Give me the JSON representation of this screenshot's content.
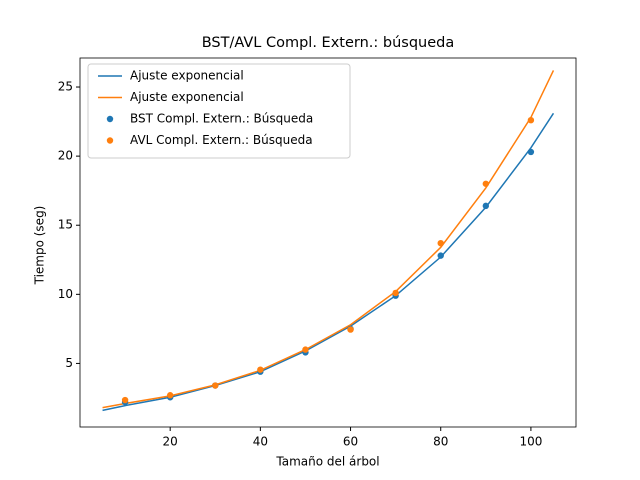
{
  "chart_data": {
    "type": "line",
    "title": "BST/AVL Compl. Extern.: búsqueda",
    "x_label": "Tamaño del árbol",
    "y_label": "Tiempo (seg)",
    "xlim": [
      0,
      110
    ],
    "ylim": [
      0.4,
      27.1
    ],
    "xticks": [
      20,
      40,
      60,
      80,
      100
    ],
    "yticks": [
      5,
      10,
      15,
      20,
      25
    ],
    "legend": "upper left",
    "grid": false,
    "series": [
      {
        "name": "Ajuste exponencial",
        "type": "line",
        "color": "#1f77b4",
        "x": [
          5,
          10,
          20,
          30,
          40,
          50,
          60,
          70,
          80,
          90,
          100,
          105
        ],
        "values": [
          1.6,
          1.95,
          2.55,
          3.4,
          4.4,
          5.9,
          7.7,
          9.9,
          12.7,
          16.3,
          20.6,
          23.1
        ]
      },
      {
        "name": "Ajuste exponencial",
        "type": "line",
        "color": "#ff7f0e",
        "x": [
          5,
          10,
          20,
          30,
          40,
          50,
          60,
          70,
          80,
          90,
          100,
          105
        ],
        "values": [
          1.8,
          2.1,
          2.65,
          3.45,
          4.5,
          6.0,
          7.8,
          10.2,
          13.4,
          17.7,
          22.8,
          26.2
        ]
      },
      {
        "name": "BST Compl. Extern.: Búsqueda",
        "type": "scatter",
        "color": "#1f77b4",
        "x": [
          10,
          20,
          30,
          40,
          50,
          60,
          70,
          80,
          90,
          100
        ],
        "values": [
          2.2,
          2.55,
          3.4,
          4.4,
          5.8,
          7.5,
          9.9,
          12.8,
          16.4,
          20.3
        ]
      },
      {
        "name": "AVL Compl. Extern.: Búsqueda",
        "type": "scatter",
        "color": "#ff7f0e",
        "x": [
          10,
          20,
          30,
          40,
          50,
          60,
          70,
          80,
          90,
          100
        ],
        "values": [
          2.35,
          2.7,
          3.4,
          4.55,
          6.0,
          7.45,
          10.1,
          13.7,
          18.0,
          22.6
        ]
      }
    ]
  }
}
